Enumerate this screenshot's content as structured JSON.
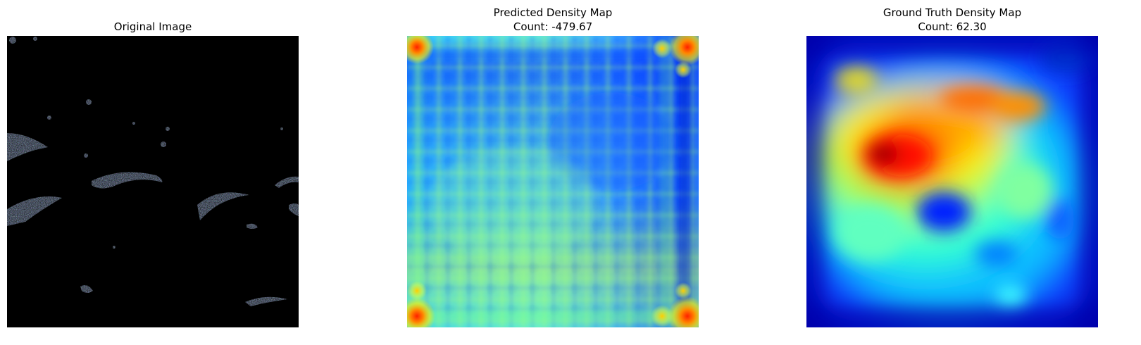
{
  "panels": [
    {
      "id": "original",
      "title": "Original Image",
      "count_text": ""
    },
    {
      "id": "predicted",
      "title": "Predicted Density Map",
      "count_text": "Count: -479.67"
    },
    {
      "id": "ground_truth",
      "title": "Ground Truth Density Map",
      "count_text": "Count: 62.30"
    }
  ],
  "colors": {
    "background": "#ffffff",
    "black": "#000000",
    "jet_dark_blue": "#00008f",
    "jet_blue": "#0000ff",
    "jet_cyan": "#00ffff",
    "jet_yellow": "#ffff00",
    "jet_red": "#ff0000",
    "jet_dark_red": "#800000"
  }
}
